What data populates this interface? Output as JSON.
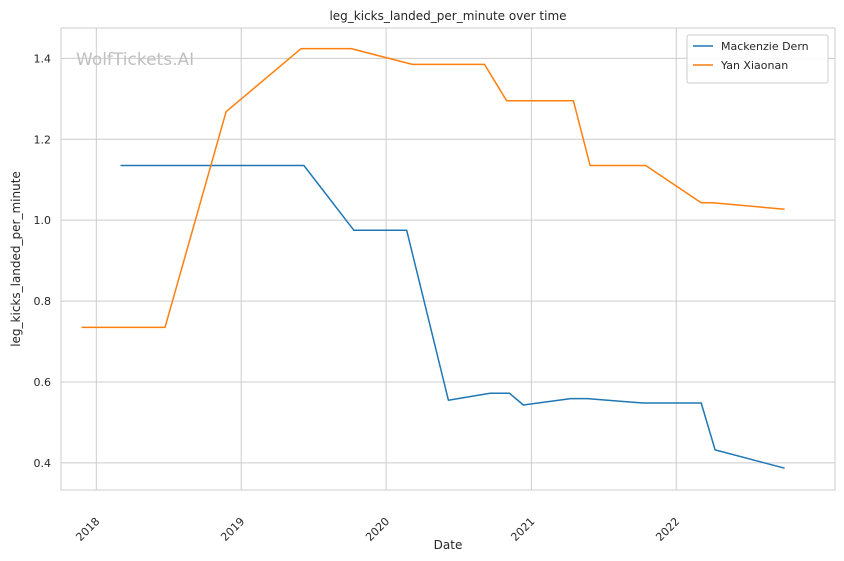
{
  "chart_data": {
    "type": "line",
    "title": "leg_kicks_landed_per_minute over time",
    "xlabel": "Date",
    "ylabel": "leg_kicks_landed_per_minute",
    "watermark": "WolfTickets.AI",
    "grid": true,
    "legend_position": "top-right",
    "xlim": [
      "2017-10-04",
      "2023-02-05"
    ],
    "ylim": [
      0.333,
      1.475
    ],
    "x_ticks": [
      "2018",
      "2019",
      "2020",
      "2021",
      "2022"
    ],
    "y_ticks": [
      "0.4",
      "0.6",
      "0.8",
      "1.0",
      "1.2",
      "1.4"
    ],
    "series": [
      {
        "name": "Mackenzie Dern",
        "color": "#1f77b4",
        "points": [
          [
            "2018-03-03",
            1.135
          ],
          [
            "2019-06-08",
            1.135
          ],
          [
            "2019-10-12",
            0.975
          ],
          [
            "2020-02-22",
            0.975
          ],
          [
            "2020-06-06",
            0.555
          ],
          [
            "2020-09-19",
            0.572
          ],
          [
            "2020-11-07",
            0.572
          ],
          [
            "2020-12-12",
            0.543
          ],
          [
            "2021-04-10",
            0.559
          ],
          [
            "2021-05-22",
            0.559
          ],
          [
            "2021-10-09",
            0.548
          ],
          [
            "2022-03-05",
            0.548
          ],
          [
            "2022-04-09",
            0.432
          ],
          [
            "2022-10-01",
            0.387
          ]
        ]
      },
      {
        "name": "Yan Xiaonan",
        "color": "#ff7f0e",
        "points": [
          [
            "2017-11-25",
            0.735
          ],
          [
            "2018-06-23",
            0.735
          ],
          [
            "2018-11-24",
            1.268
          ],
          [
            "2019-06-01",
            1.424
          ],
          [
            "2019-10-05",
            1.424
          ],
          [
            "2020-03-07",
            1.385
          ],
          [
            "2020-09-05",
            1.385
          ],
          [
            "2020-10-31",
            1.295
          ],
          [
            "2021-04-17",
            1.295
          ],
          [
            "2021-05-29",
            1.135
          ],
          [
            "2021-10-16",
            1.135
          ],
          [
            "2022-03-05",
            1.043
          ],
          [
            "2022-04-02",
            1.043
          ],
          [
            "2022-10-01",
            1.027
          ]
        ]
      }
    ]
  }
}
